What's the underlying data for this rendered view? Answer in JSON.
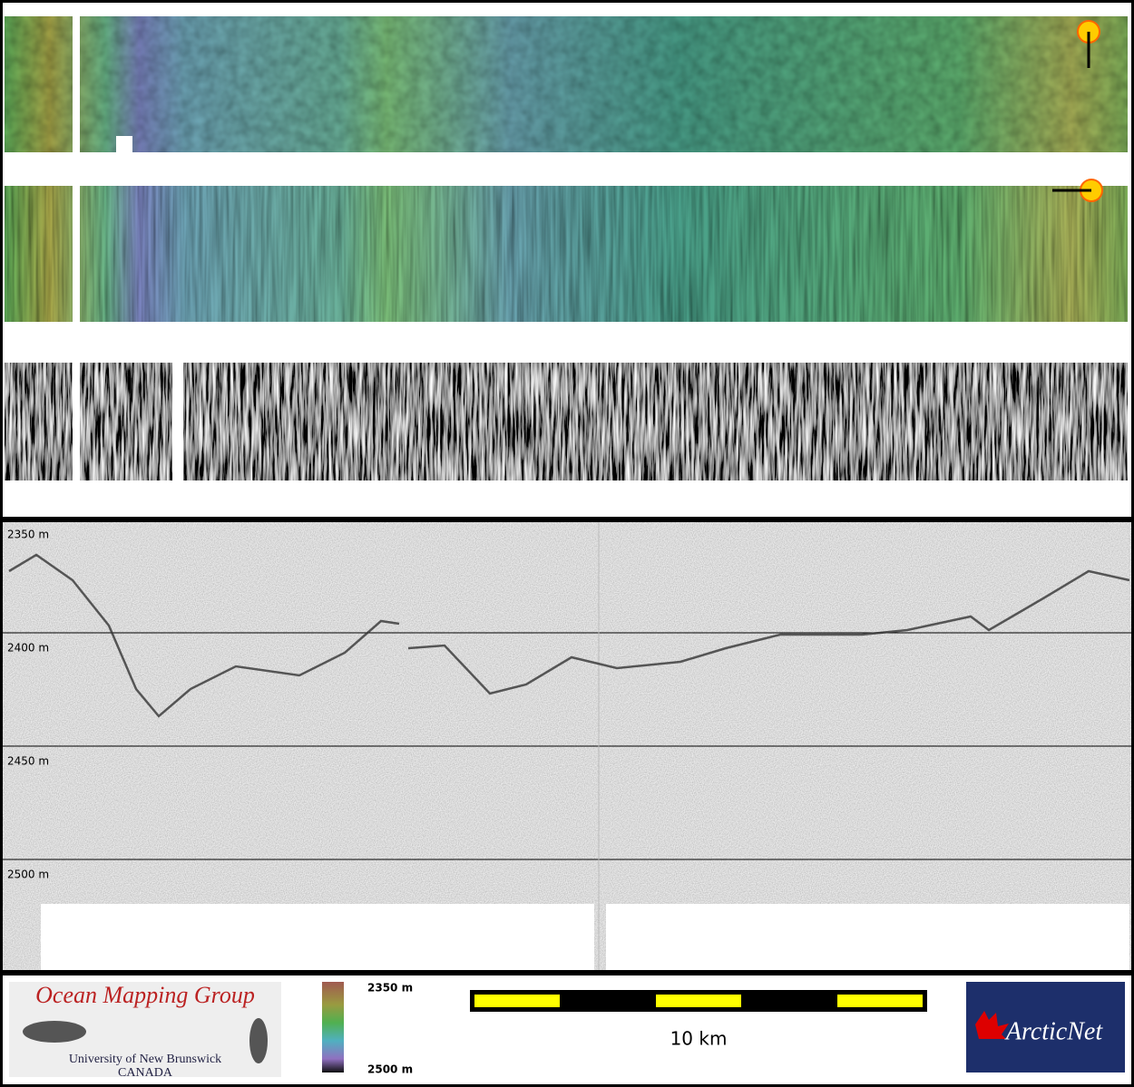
{
  "depth_labels": [
    "2350 m",
    "2400 m",
    "2450 m",
    "2500 m"
  ],
  "logo_left": {
    "title": "Ocean Mapping Group",
    "university": "University of New Brunswick",
    "country": "CANADA"
  },
  "colorbar": {
    "top": "2350 m",
    "bottom": "2500 m"
  },
  "scale_bar": {
    "label": "10 km"
  },
  "logo_right": {
    "title": "ArcticNet"
  }
}
